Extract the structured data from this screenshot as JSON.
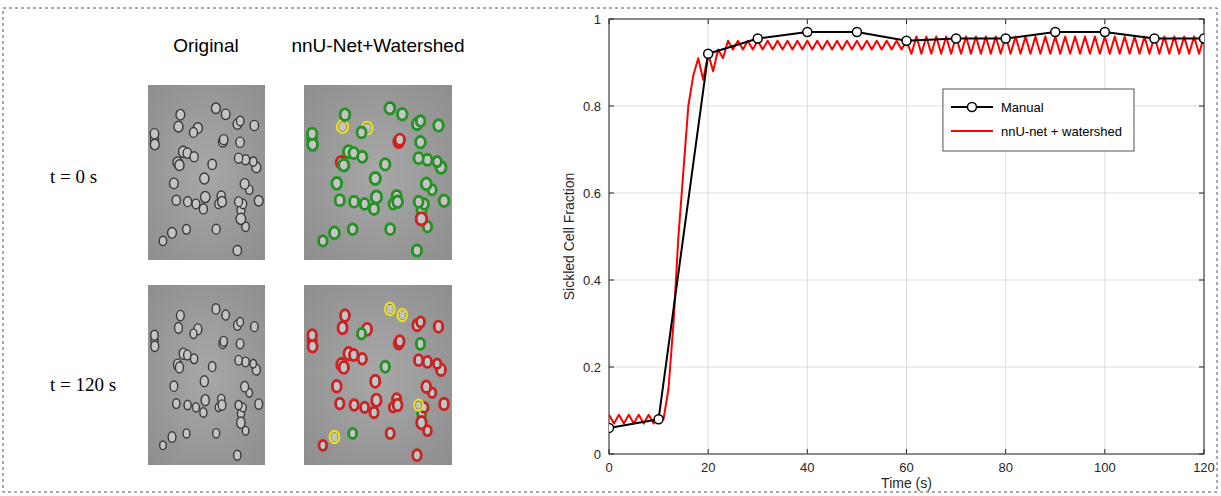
{
  "image_panel": {
    "column_titles": [
      "Original",
      "nnU-Net+Watershed"
    ],
    "row_labels": [
      "t = 0 s",
      "t = 120 s"
    ]
  },
  "chart_data": {
    "type": "line",
    "x_label": "Time (s)",
    "y_label": "Sickled Cell Fraction",
    "xlim": [
      0,
      120
    ],
    "xticks": [
      0,
      20,
      40,
      60,
      80,
      100,
      120
    ],
    "ylim": [
      0,
      1
    ],
    "yticks": [
      0,
      0.2,
      0.4,
      0.6,
      0.8,
      1
    ],
    "grid": true,
    "legend": "upper right",
    "series": [
      {
        "name": "Manual",
        "color": "#000000",
        "marker": "circle",
        "line_style": "solid",
        "x": [
          0,
          10,
          20,
          30,
          40,
          50,
          60,
          70,
          80,
          90,
          100,
          110,
          120
        ],
        "values": [
          0.06,
          0.08,
          0.92,
          0.955,
          0.97,
          0.97,
          0.95,
          0.955,
          0.955,
          0.97,
          0.97,
          0.955,
          0.955
        ]
      },
      {
        "name": "nnU-net + watershed",
        "color": "#ff0000",
        "marker": "none",
        "line_style": "solid",
        "x": [
          0,
          1,
          2,
          3,
          4,
          5,
          6,
          7,
          8,
          9,
          10,
          11,
          12,
          13,
          14,
          15,
          16,
          17,
          18,
          19,
          20,
          21,
          22,
          23,
          24,
          25,
          26,
          27,
          28,
          29,
          30,
          31,
          32,
          33,
          34,
          35,
          36,
          37,
          38,
          39,
          40,
          41,
          42,
          43,
          44,
          45,
          46,
          47,
          48,
          49,
          50,
          51,
          52,
          53,
          54,
          55,
          56,
          57,
          58,
          59,
          60,
          61,
          62,
          63,
          64,
          65,
          66,
          67,
          68,
          69,
          70,
          71,
          72,
          73,
          74,
          75,
          76,
          77,
          78,
          79,
          80,
          81,
          82,
          83,
          84,
          85,
          86,
          87,
          88,
          89,
          90,
          91,
          92,
          93,
          94,
          95,
          96,
          97,
          98,
          99,
          100,
          101,
          102,
          103,
          104,
          105,
          106,
          107,
          108,
          109,
          110,
          111,
          112,
          113,
          114,
          115,
          116,
          117,
          118,
          119,
          120
        ],
        "values": [
          0.09,
          0.07,
          0.09,
          0.07,
          0.09,
          0.07,
          0.09,
          0.07,
          0.09,
          0.07,
          0.09,
          0.08,
          0.15,
          0.3,
          0.5,
          0.65,
          0.8,
          0.87,
          0.91,
          0.86,
          0.92,
          0.88,
          0.93,
          0.91,
          0.95,
          0.93,
          0.95,
          0.93,
          0.95,
          0.93,
          0.95,
          0.93,
          0.95,
          0.93,
          0.95,
          0.93,
          0.95,
          0.93,
          0.95,
          0.93,
          0.95,
          0.93,
          0.95,
          0.93,
          0.95,
          0.93,
          0.95,
          0.93,
          0.95,
          0.93,
          0.95,
          0.93,
          0.95,
          0.93,
          0.95,
          0.93,
          0.95,
          0.93,
          0.95,
          0.93,
          0.95,
          0.92,
          0.96,
          0.92,
          0.96,
          0.92,
          0.96,
          0.92,
          0.96,
          0.92,
          0.96,
          0.92,
          0.96,
          0.92,
          0.96,
          0.92,
          0.96,
          0.92,
          0.96,
          0.92,
          0.96,
          0.92,
          0.96,
          0.92,
          0.96,
          0.92,
          0.96,
          0.92,
          0.96,
          0.92,
          0.96,
          0.92,
          0.96,
          0.92,
          0.96,
          0.92,
          0.96,
          0.92,
          0.96,
          0.92,
          0.96,
          0.92,
          0.96,
          0.92,
          0.96,
          0.92,
          0.96,
          0.92,
          0.96,
          0.92,
          0.96,
          0.92,
          0.96,
          0.92,
          0.96,
          0.92,
          0.96,
          0.92,
          0.96,
          0.92,
          0.96
        ]
      }
    ]
  }
}
